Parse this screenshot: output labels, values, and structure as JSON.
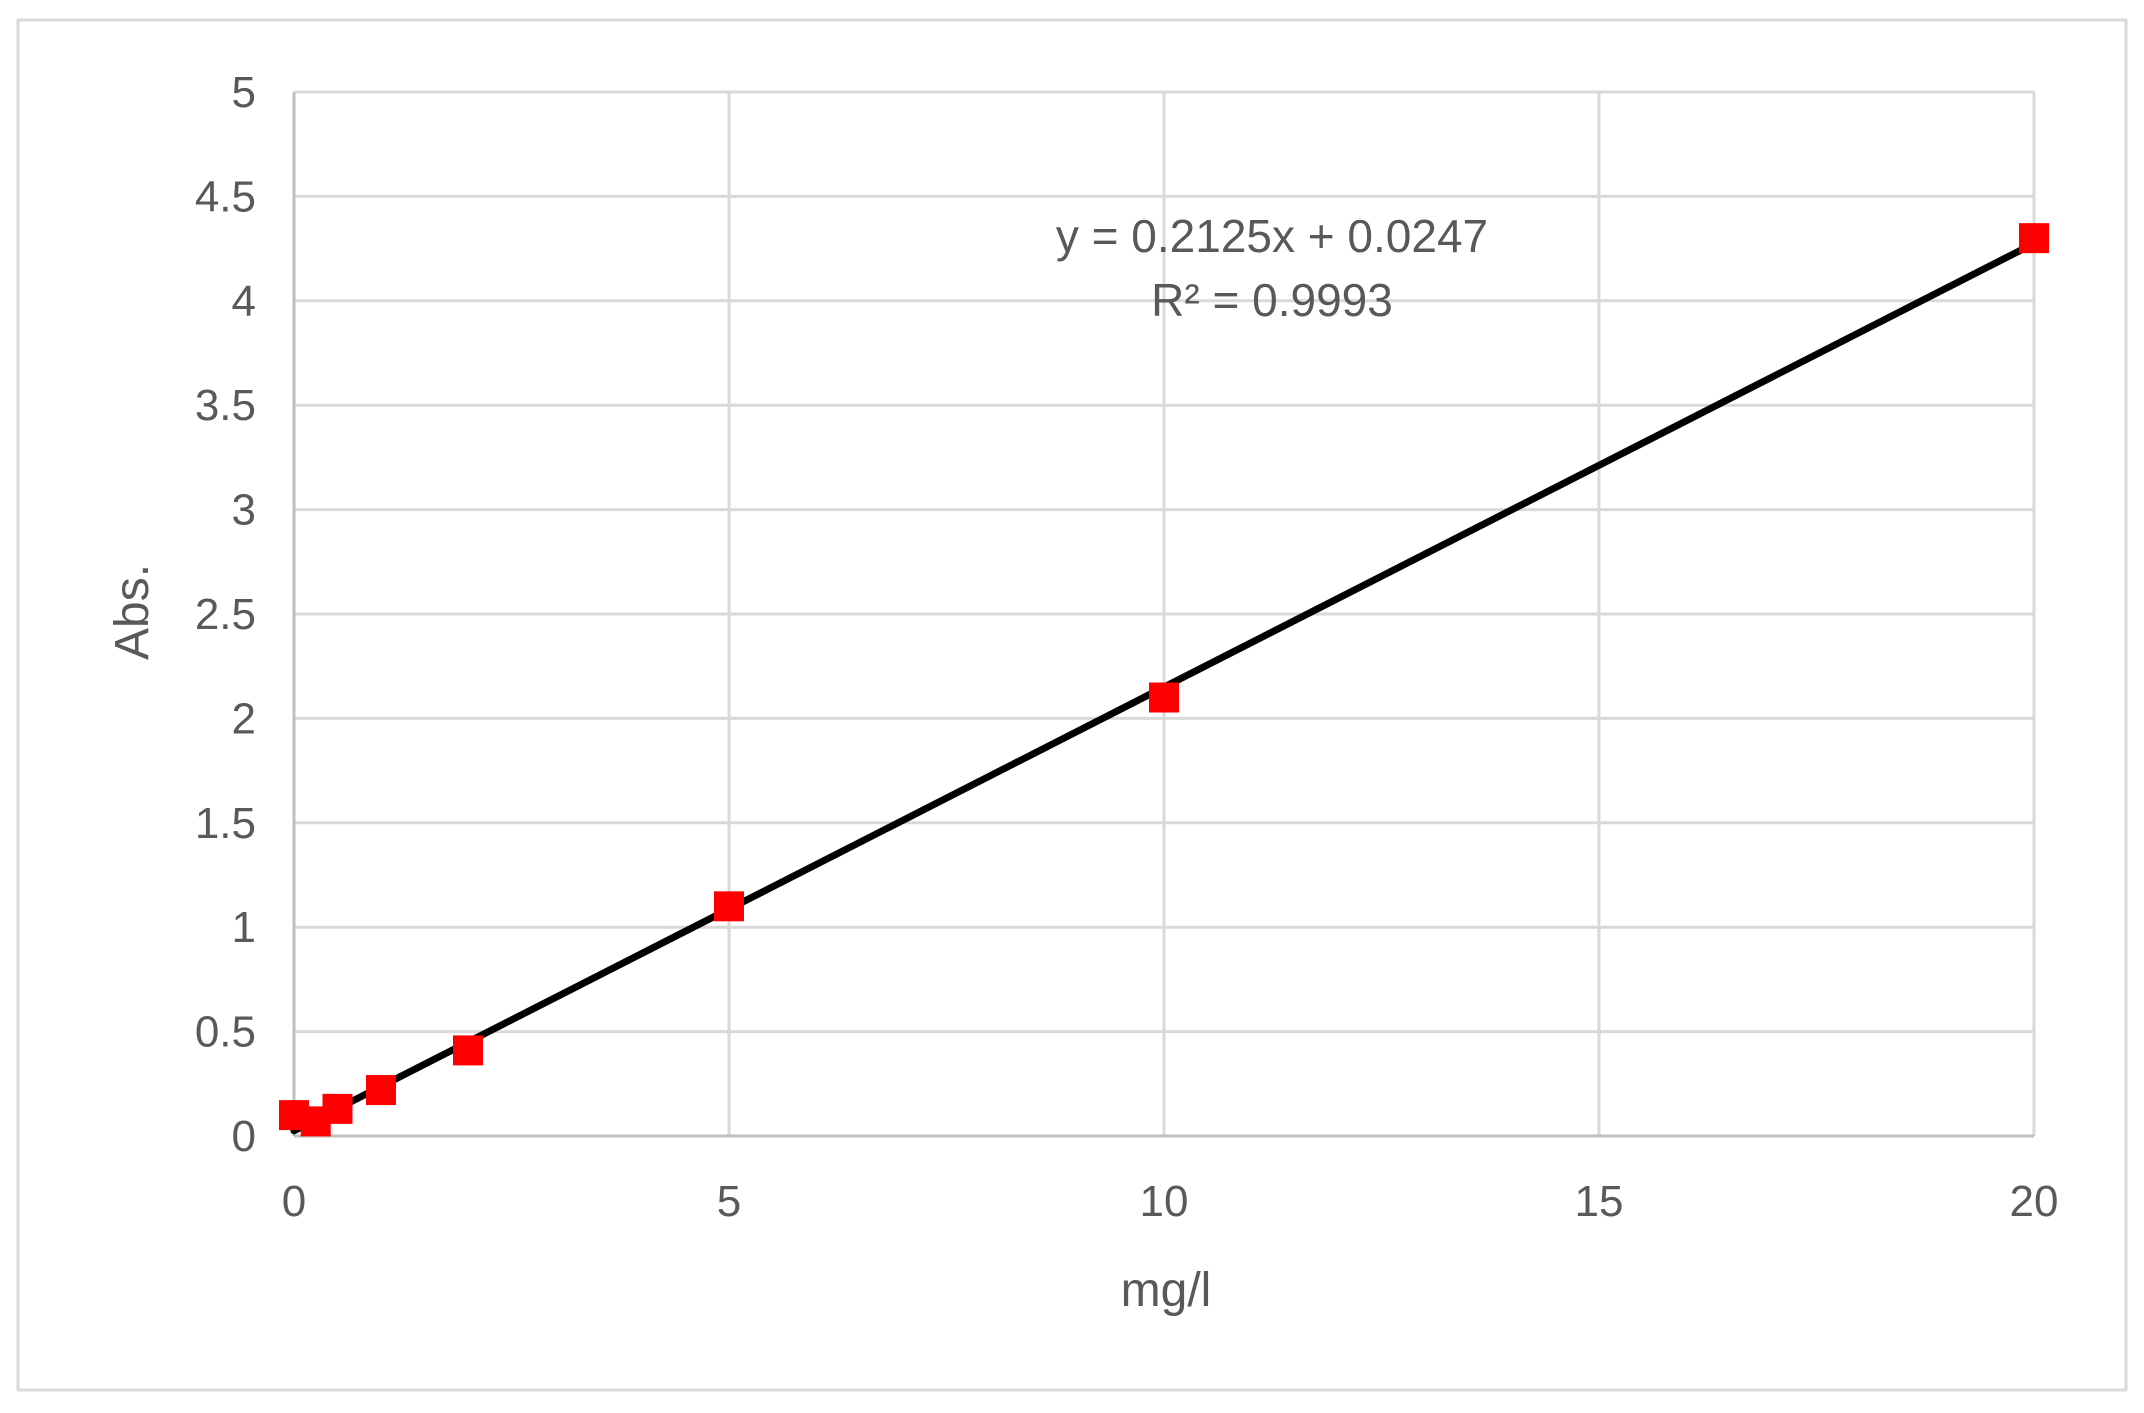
{
  "chart_data": {
    "type": "scatter",
    "title": "",
    "xlabel": "mg/l",
    "ylabel": "Abs.",
    "xlim": [
      0,
      20
    ],
    "ylim": [
      0,
      5
    ],
    "x_ticks": [
      "0",
      "5",
      "10",
      "15",
      "20"
    ],
    "y_ticks": [
      "0",
      "0.5",
      "1",
      "1.5",
      "2",
      "2.5",
      "3",
      "3.5",
      "4",
      "4.5",
      "5"
    ],
    "grid": true,
    "legend": "none",
    "series": [
      {
        "marker": "square",
        "color": "#ff0000",
        "points": [
          {
            "x": 0,
            "y": 0.1
          },
          {
            "x": 0.25,
            "y": 0.07
          },
          {
            "x": 0.5,
            "y": 0.13
          },
          {
            "x": 1,
            "y": 0.22
          },
          {
            "x": 2,
            "y": 0.41
          },
          {
            "x": 5,
            "y": 1.1
          },
          {
            "x": 10,
            "y": 2.1
          },
          {
            "x": 20,
            "y": 4.3
          }
        ]
      }
    ],
    "trendline": {
      "type": "linear",
      "slope": 0.2125,
      "intercept": 0.0247,
      "color": "#000000",
      "equation_label": "y = 0.2125x + 0.0247",
      "r2_label": "R² = 0.9993"
    },
    "colors": {
      "grid": "#d9d9d9",
      "text": "#595959",
      "frame": "#d9d9d9"
    }
  }
}
